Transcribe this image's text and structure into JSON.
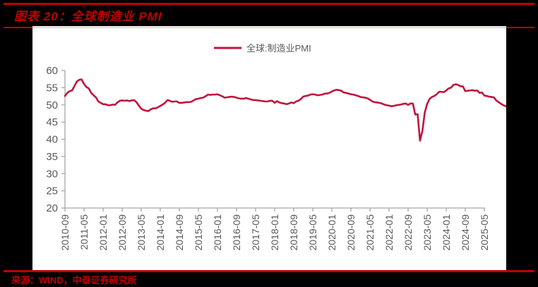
{
  "header": {
    "title": "图表 20：全球制造业 PMI"
  },
  "source": "来源：WIND，中泰证券研究所",
  "colors": {
    "brand_red": "#c00000",
    "series": "#c0143c",
    "axis": "#a6a6a6",
    "tick_text": "#595959"
  },
  "chart_data": {
    "type": "line",
    "title": "",
    "xlabel": "",
    "ylabel": "",
    "ylim": [
      20,
      60
    ],
    "yticks": [
      60,
      55,
      50,
      45,
      40,
      35,
      30,
      25,
      20
    ],
    "grid": false,
    "legend_position": "top-center",
    "x_start": "2010-09",
    "x_end": "2025-06",
    "xtick_labels": [
      "2010-09",
      "2011-05",
      "2012-01",
      "2012-09",
      "2013-05",
      "2014-01",
      "2014-09",
      "2015-05",
      "2016-01",
      "2016-09",
      "2017-05",
      "2018-01",
      "2018-09",
      "2019-05",
      "2020-01",
      "2020-09",
      "2021-05",
      "2022-01",
      "2022-09",
      "2023-05",
      "2024-01",
      "2024-09",
      "2025-05"
    ],
    "series": [
      {
        "name": "全球:制造业PMI",
        "frequency": "monthly",
        "values": [
          52.6,
          53.5,
          54.0,
          54.2,
          55.5,
          56.8,
          57.3,
          57.4,
          56.1,
          55.2,
          54.8,
          53.5,
          52.8,
          52.2,
          51.0,
          50.6,
          50.2,
          50.2,
          49.9,
          49.9,
          50.1,
          50.0,
          50.7,
          51.2,
          51.3,
          51.2,
          51.3,
          51.1,
          51.3,
          51.4,
          50.8,
          49.8,
          48.9,
          48.5,
          48.3,
          48.2,
          48.7,
          49.0,
          49.0,
          49.3,
          49.7,
          50.1,
          50.6,
          51.4,
          51.2,
          50.9,
          51.0,
          51.0,
          50.6,
          50.6,
          50.7,
          50.8,
          50.8,
          50.9,
          51.3,
          51.7,
          51.8,
          52.0,
          52.1,
          52.5,
          53.0,
          52.9,
          53.0,
          53.0,
          53.1,
          52.8,
          52.5,
          52.1,
          52.2,
          52.3,
          52.4,
          52.3,
          52.1,
          51.9,
          51.8,
          51.8,
          52.0,
          51.8,
          51.6,
          51.4,
          51.4,
          51.3,
          51.2,
          51.1,
          51.0,
          51.0,
          51.2,
          51.2,
          50.6,
          51.1,
          50.7,
          50.5,
          50.4,
          50.2,
          50.4,
          50.7,
          50.5,
          51.0,
          51.2,
          51.7,
          52.4,
          52.6,
          52.7,
          53.0,
          53.1,
          53.0,
          52.8,
          52.9,
          53.0,
          53.3,
          53.3,
          53.5,
          53.9,
          54.2,
          54.4,
          54.3,
          54.1,
          53.6,
          53.5,
          53.3,
          53.1,
          53.0,
          52.8,
          52.6,
          52.3,
          52.2,
          52.1,
          51.9,
          51.5,
          51.0,
          50.8,
          50.7,
          50.6,
          50.4,
          50.1,
          49.9,
          49.8,
          49.6,
          49.7,
          49.9,
          50.0,
          50.1,
          50.3,
          50.4,
          50.0,
          50.4,
          50.4,
          47.2,
          47.3,
          39.6,
          42.4,
          47.8,
          50.3,
          51.7,
          52.3,
          52.6,
          53.1,
          53.8,
          53.8,
          53.7,
          54.2,
          54.8,
          55.0,
          55.8,
          56.0,
          55.8,
          55.4,
          55.4,
          54.0,
          54.1,
          54.2,
          54.3,
          54.1,
          54.2,
          53.5,
          53.6,
          52.7,
          52.6,
          52.4,
          52.3,
          52.2,
          51.3,
          50.8,
          50.3,
          49.9,
          49.6,
          49.3,
          49.1,
          49.0,
          49.1,
          49.4,
          49.8,
          50.1,
          49.6,
          49.6,
          49.6,
          48.7,
          48.6,
          48.7,
          49.0,
          49.1,
          49.2,
          48.8,
          49.1,
          49.0,
          49.5,
          50.0,
          50.3,
          50.3,
          50.8,
          50.6,
          51.0,
          50.2,
          49.7,
          49.5,
          49.4,
          48.7,
          49.3,
          49.5,
          49.9,
          49.6,
          49.8,
          50.1,
          50.5,
          50.2,
          50.0,
          49.7,
          49.5,
          50.3
        ]
      }
    ]
  }
}
